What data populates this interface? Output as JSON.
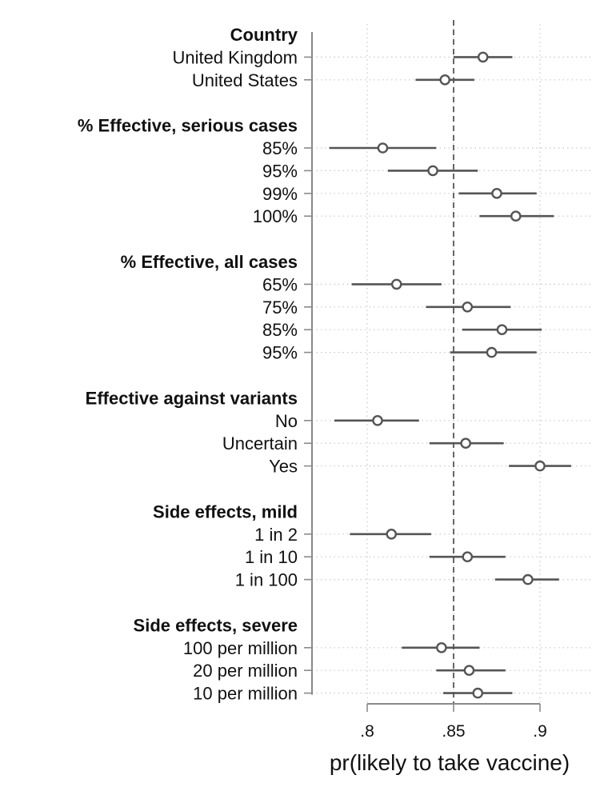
{
  "chart_data": {
    "type": "scatter",
    "subtype": "coefficient-plot-with-confidence-intervals",
    "xlabel": "pr(likely to take vaccine)",
    "xlim": [
      0.77,
      0.925
    ],
    "xticks": [
      {
        "value": 0.8,
        "label": ".8"
      },
      {
        "value": 0.85,
        "label": ".85"
      },
      {
        "value": 0.9,
        "label": ".9"
      }
    ],
    "reference_line": {
      "x": 0.85,
      "style": "dashed"
    },
    "vertical_gridlines": "dotted",
    "horizontal_gridlines": "dotted",
    "groups": [
      {
        "title": "Country",
        "items": [
          {
            "label": "United Kingdom",
            "estimate": 0.867,
            "ci": [
              0.85,
              0.884
            ]
          },
          {
            "label": "United States",
            "estimate": 0.845,
            "ci": [
              0.828,
              0.862
            ]
          }
        ]
      },
      {
        "title": "% Effective, serious cases",
        "items": [
          {
            "label": "85%",
            "estimate": 0.809,
            "ci": [
              0.778,
              0.84
            ]
          },
          {
            "label": "95%",
            "estimate": 0.838,
            "ci": [
              0.812,
              0.864
            ]
          },
          {
            "label": "99%",
            "estimate": 0.875,
            "ci": [
              0.853,
              0.898
            ]
          },
          {
            "label": "100%",
            "estimate": 0.886,
            "ci": [
              0.865,
              0.908
            ]
          }
        ]
      },
      {
        "title": "% Effective, all cases",
        "items": [
          {
            "label": "65%",
            "estimate": 0.817,
            "ci": [
              0.791,
              0.843
            ]
          },
          {
            "label": "75%",
            "estimate": 0.858,
            "ci": [
              0.834,
              0.883
            ]
          },
          {
            "label": "85%",
            "estimate": 0.878,
            "ci": [
              0.855,
              0.901
            ]
          },
          {
            "label": "95%",
            "estimate": 0.872,
            "ci": [
              0.848,
              0.898
            ]
          }
        ]
      },
      {
        "title": "Effective against variants",
        "items": [
          {
            "label": "No",
            "estimate": 0.806,
            "ci": [
              0.781,
              0.83
            ]
          },
          {
            "label": "Uncertain",
            "estimate": 0.857,
            "ci": [
              0.836,
              0.879
            ]
          },
          {
            "label": "Yes",
            "estimate": 0.9,
            "ci": [
              0.882,
              0.918
            ]
          }
        ]
      },
      {
        "title": "Side effects, mild",
        "items": [
          {
            "label": "1 in 2",
            "estimate": 0.814,
            "ci": [
              0.79,
              0.837
            ]
          },
          {
            "label": "1 in 10",
            "estimate": 0.858,
            "ci": [
              0.836,
              0.88
            ]
          },
          {
            "label": "1 in 100",
            "estimate": 0.893,
            "ci": [
              0.874,
              0.911
            ]
          }
        ]
      },
      {
        "title": "Side effects, severe",
        "items": [
          {
            "label": "100 per million",
            "estimate": 0.843,
            "ci": [
              0.82,
              0.865
            ]
          },
          {
            "label": "20 per million",
            "estimate": 0.859,
            "ci": [
              0.84,
              0.88
            ]
          },
          {
            "label": "10 per million",
            "estimate": 0.864,
            "ci": [
              0.844,
              0.884
            ]
          }
        ]
      }
    ]
  }
}
